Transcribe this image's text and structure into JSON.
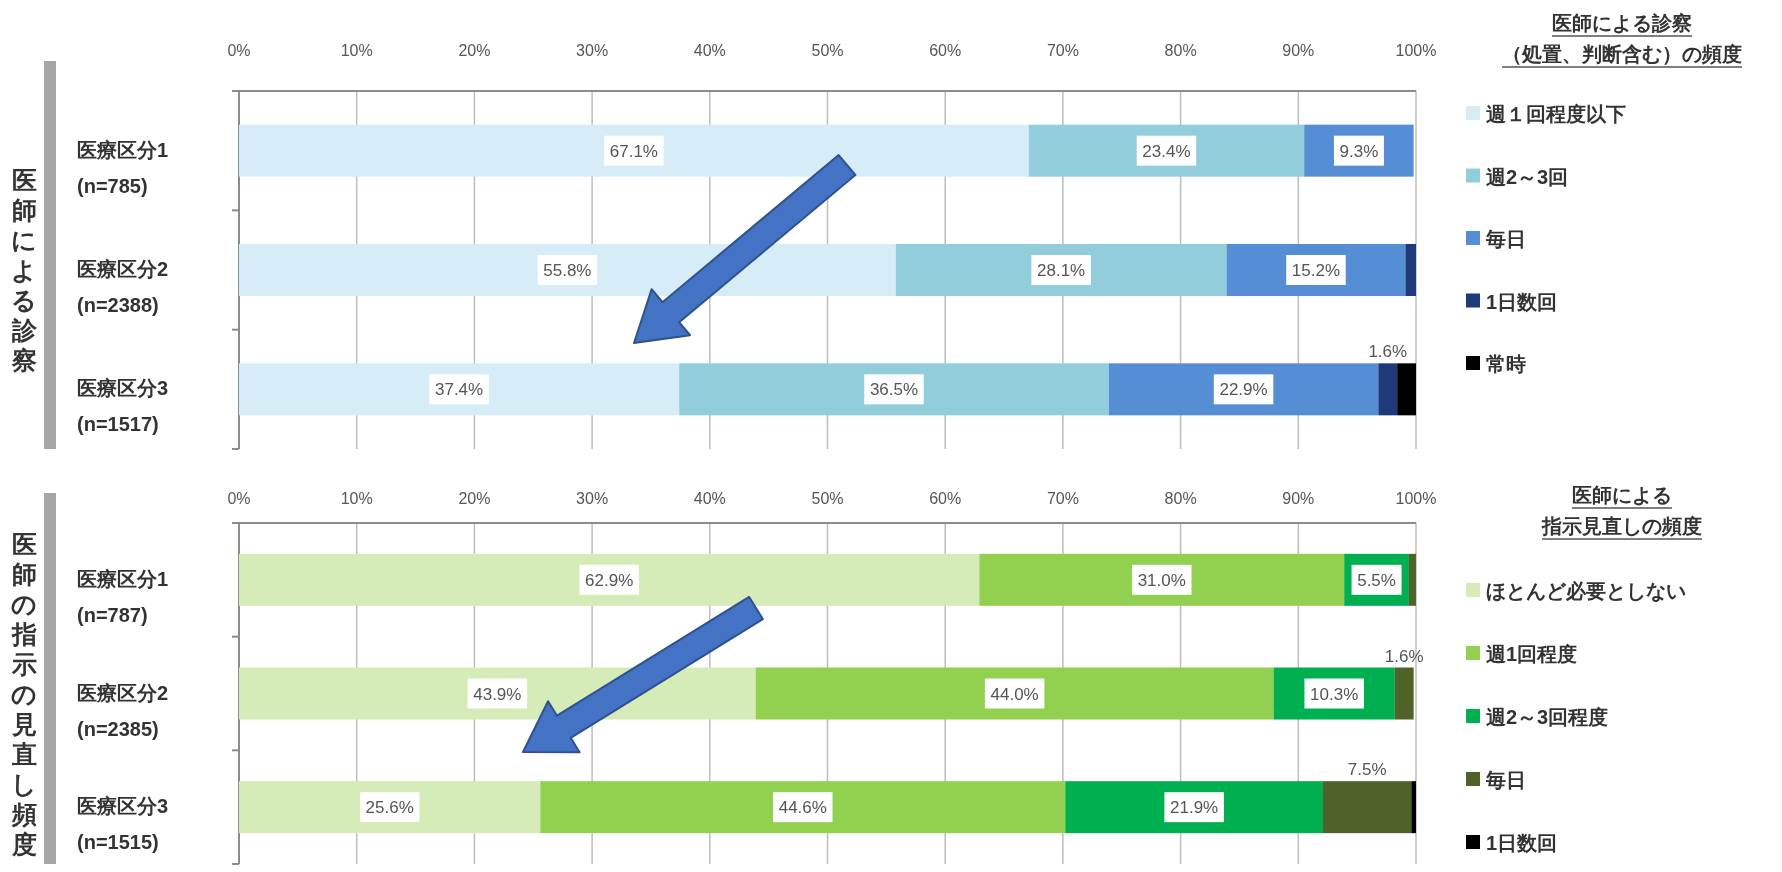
{
  "chart_data": [
    {
      "type": "bar",
      "orientation": "horizontal",
      "stacked": true,
      "ylabel": "医師による診察",
      "legend_title": "医師による診察（処置、判断含む）の頻度",
      "legend": "right",
      "grid": "x",
      "categories": [
        "医療区分1\n(n=785)",
        "医療区分2\n(n=2388)",
        "医療区分3\n(n=1517)"
      ],
      "xlim": [
        0,
        100
      ],
      "xticks": [
        {
          "value": 0,
          "label": "0%"
        },
        {
          "value": 10,
          "label": "10%"
        },
        {
          "value": 20,
          "label": "20%"
        },
        {
          "value": 30,
          "label": "30%"
        },
        {
          "value": 40,
          "label": "40%"
        },
        {
          "value": 50,
          "label": "50%"
        },
        {
          "value": 60,
          "label": "60%"
        },
        {
          "value": 70,
          "label": "70%"
        },
        {
          "value": 80,
          "label": "80%"
        },
        {
          "value": 90,
          "label": "90%"
        },
        {
          "value": 100,
          "label": "100%"
        }
      ],
      "series": [
        {
          "name": "週１回程度以下",
          "color": "#d6ecf6",
          "values": [
            67.1,
            55.8,
            37.4
          ],
          "value_labels": [
            "67.1%",
            "55.8%",
            "37.4%"
          ]
        },
        {
          "name": "週2～3回",
          "color": "#92cddc",
          "values": [
            23.4,
            28.1,
            36.5
          ],
          "value_labels": [
            "23.4%",
            "28.1%",
            "36.5%"
          ]
        },
        {
          "name": "毎日",
          "color": "#558ed5",
          "values": [
            9.3,
            15.2,
            22.9
          ],
          "value_labels": [
            "9.3%",
            "15.2%",
            "22.9%"
          ]
        },
        {
          "name": "1日数回",
          "color": "#1f3a7a",
          "values": [
            null,
            0.9,
            1.6
          ],
          "value_labels": [
            null,
            null,
            "1.6%"
          ]
        },
        {
          "name": "常時",
          "color": "#000000",
          "values": [
            null,
            null,
            1.6
          ]
        }
      ]
    },
    {
      "type": "bar",
      "orientation": "horizontal",
      "stacked": true,
      "ylabel": "医師の指示の見直し頻度",
      "legend_title": "医師による指示見直しの頻度",
      "legend": "right",
      "grid": "x",
      "categories": [
        "医療区分1\n(n=787)",
        "医療区分2\n(n=2385)",
        "医療区分3\n(n=1515)"
      ],
      "xlim": [
        0,
        100
      ],
      "xticks": [
        {
          "value": 0,
          "label": "0%"
        },
        {
          "value": 10,
          "label": "10%"
        },
        {
          "value": 20,
          "label": "20%"
        },
        {
          "value": 30,
          "label": "30%"
        },
        {
          "value": 40,
          "label": "40%"
        },
        {
          "value": 50,
          "label": "50%"
        },
        {
          "value": 60,
          "label": "60%"
        },
        {
          "value": 70,
          "label": "70%"
        },
        {
          "value": 80,
          "label": "80%"
        },
        {
          "value": 90,
          "label": "90%"
        },
        {
          "value": 100,
          "label": "100%"
        }
      ],
      "series": [
        {
          "name": "ほとんど必要としない",
          "color": "#d5ebb8",
          "values": [
            62.9,
            43.9,
            25.6
          ],
          "value_labels": [
            "62.9%",
            "43.9%",
            "25.6%"
          ]
        },
        {
          "name": "週1回程度",
          "color": "#92d050",
          "values": [
            31.0,
            44.0,
            44.6
          ],
          "value_labels": [
            "31.0%",
            "44.0%",
            "44.6%"
          ]
        },
        {
          "name": "週2～3回程度",
          "color": "#00b050",
          "values": [
            5.5,
            10.3,
            21.9
          ],
          "value_labels": [
            "5.5%",
            "10.3%",
            "21.9%"
          ]
        },
        {
          "name": "毎日",
          "color": "#4f6228",
          "values": [
            0.6,
            1.6,
            7.5
          ],
          "value_labels": [
            null,
            "1.6%",
            "7.5%"
          ]
        },
        {
          "name": "1日数回",
          "color": "#000000",
          "values": [
            null,
            null,
            0.4
          ]
        }
      ]
    }
  ]
}
